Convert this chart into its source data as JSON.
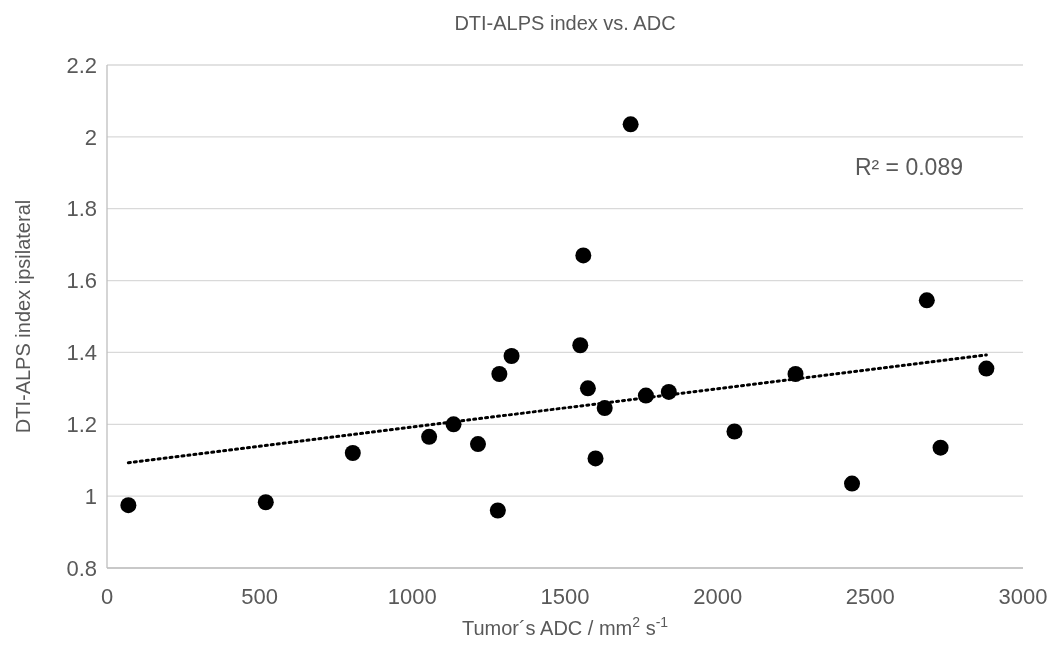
{
  "chart_data": {
    "type": "scatter",
    "title": "DTI-ALPS index vs. ADC",
    "xlabel": "Tumor´s ADC / mm$^{2}$ s$^{-1}$",
    "ylabel": "DTI-ALPS index ipsilateral",
    "xlim": [
      0,
      3000
    ],
    "xticks": [
      0,
      500,
      1000,
      1500,
      2000,
      2500,
      3000
    ],
    "ylim": [
      0.8,
      2.2
    ],
    "yticks": [
      0.8,
      1,
      1.2,
      1.4,
      1.6,
      1.8,
      2,
      2.2
    ],
    "grid": "y",
    "series": [
      {
        "color": "#000000",
        "marker": "circle",
        "x": [
          70,
          520,
          805,
          1055,
          1135,
          1215,
          1280,
          1285,
          1325,
          1550,
          1560,
          1575,
          1600,
          1630,
          1715,
          1765,
          1840,
          2055,
          2255,
          2440,
          2685,
          2730,
          2880
        ],
        "values": [
          0.975,
          0.983,
          1.12,
          1.165,
          1.2,
          1.145,
          0.96,
          1.34,
          1.39,
          1.42,
          1.67,
          1.3,
          1.105,
          1.245,
          2.035,
          1.28,
          1.29,
          1.18,
          1.34,
          1.035,
          1.545,
          1.135,
          1.355
        ]
      },
      {
        "type": "line",
        "color": "#000000",
        "marker": "none",
        "line_style": "dotted",
        "x": [
          70,
          2880
        ],
        "values": [
          1.093,
          1.393
        ]
      }
    ],
    "annotations": [
      "R² = 0.089"
    ]
  }
}
